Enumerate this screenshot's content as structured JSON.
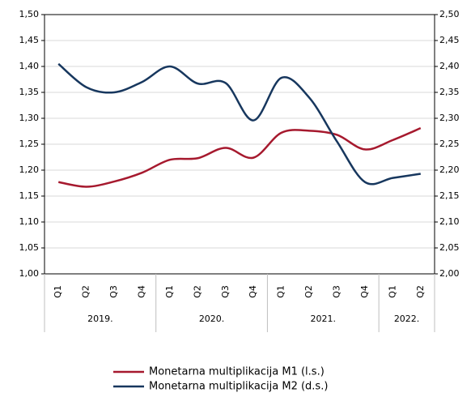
{
  "chart_data": {
    "type": "line",
    "categories": [
      "Q1",
      "Q2",
      "Q3",
      "Q4",
      "Q1",
      "Q2",
      "Q3",
      "Q4",
      "Q1",
      "Q2",
      "Q3",
      "Q4",
      "Q1",
      "Q2"
    ],
    "category_groups": [
      "2019.",
      "2019.",
      "2019.",
      "2019.",
      "2020.",
      "2020.",
      "2020.",
      "2020.",
      "2021.",
      "2021.",
      "2021.",
      "2021.",
      "2022.",
      "2022."
    ],
    "series": [
      {
        "name": "Monetarna multiplikacija M1 (l.s.)",
        "color": "#a6192e",
        "axis": "y",
        "values": [
          1.177,
          1.168,
          1.178,
          1.195,
          1.22,
          1.223,
          1.243,
          1.224,
          1.272,
          1.276,
          1.268,
          1.24,
          1.258,
          1.281
        ]
      },
      {
        "name": "Monetarna multiplikacija M2 (d.s.)",
        "color": "#17375e",
        "axis": "y2",
        "values": [
          2.405,
          2.36,
          2.35,
          2.37,
          2.4,
          2.367,
          2.368,
          2.296,
          2.378,
          2.34,
          2.255,
          2.177,
          2.185,
          2.193
        ]
      }
    ],
    "ylim": [
      1.0,
      1.5
    ],
    "yticks": [
      {
        "value": 1.0,
        "label": "1,00"
      },
      {
        "value": 1.05,
        "label": "1,05"
      },
      {
        "value": 1.1,
        "label": "1,10"
      },
      {
        "value": 1.15,
        "label": "1,15"
      },
      {
        "value": 1.2,
        "label": "1,20"
      },
      {
        "value": 1.25,
        "label": "1,25"
      },
      {
        "value": 1.3,
        "label": "1,30"
      },
      {
        "value": 1.35,
        "label": "1,35"
      },
      {
        "value": 1.4,
        "label": "1,40"
      },
      {
        "value": 1.45,
        "label": "1,45"
      },
      {
        "value": 1.5,
        "label": "1,50"
      }
    ],
    "y2lim": [
      2.0,
      2.5
    ],
    "y2ticks": [
      {
        "value": 2.0,
        "label": "2,00"
      },
      {
        "value": 2.05,
        "label": "2,05"
      },
      {
        "value": 2.1,
        "label": "2,10"
      },
      {
        "value": 2.15,
        "label": "2,15"
      },
      {
        "value": 2.2,
        "label": "2,20"
      },
      {
        "value": 2.25,
        "label": "2,25"
      },
      {
        "value": 2.3,
        "label": "2,30"
      },
      {
        "value": 2.35,
        "label": "2,35"
      },
      {
        "value": 2.4,
        "label": "2,40"
      },
      {
        "value": 2.45,
        "label": "2,45"
      },
      {
        "value": 2.5,
        "label": "2,50"
      }
    ],
    "grid": true,
    "legend": "bottom"
  }
}
